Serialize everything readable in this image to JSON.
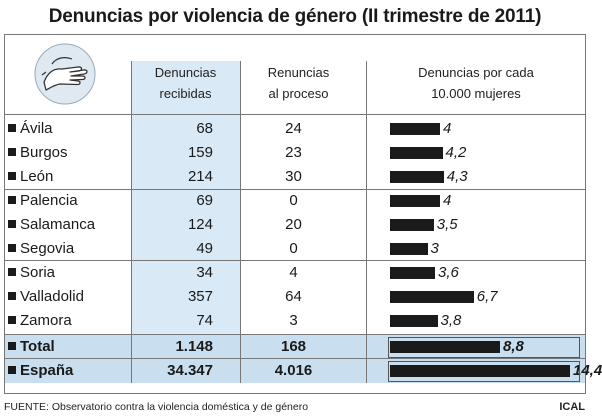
{
  "title": "Denuncias por violencia de género (II trimestre de 2011)",
  "headers": {
    "recibidas": [
      "Denuncias",
      "recibidas"
    ],
    "renuncias": [
      "Renuncias",
      "al proceso"
    ],
    "ratio": [
      "Denuncias por cada",
      "10.000 mujeres"
    ]
  },
  "rows": [
    {
      "name": "Ávila",
      "recibidas": "68",
      "renuncias": "24",
      "ratio": "4"
    },
    {
      "name": "Burgos",
      "recibidas": "159",
      "renuncias": "23",
      "ratio": "4,2"
    },
    {
      "name": "León",
      "recibidas": "214",
      "renuncias": "30",
      "ratio": "4,3"
    },
    {
      "name": "Palencia",
      "recibidas": "69",
      "renuncias": "0",
      "ratio": "4"
    },
    {
      "name": "Salamanca",
      "recibidas": "124",
      "renuncias": "20",
      "ratio": "3,5"
    },
    {
      "name": "Segovia",
      "recibidas": "49",
      "renuncias": "0",
      "ratio": "3"
    },
    {
      "name": "Soria",
      "recibidas": "34",
      "renuncias": "4",
      "ratio": "3,6"
    },
    {
      "name": "Valladolid",
      "recibidas": "357",
      "renuncias": "64",
      "ratio": "6,7"
    },
    {
      "name": "Zamora",
      "recibidas": "74",
      "renuncias": "3",
      "ratio": "3,8"
    }
  ],
  "totals": [
    {
      "name": "Total",
      "recibidas": "1.148",
      "renuncias": "168",
      "ratio": "8,8"
    },
    {
      "name": "España",
      "recibidas": "34.347",
      "renuncias": "4.016",
      "ratio": "14,4"
    }
  ],
  "chart_data": {
    "type": "bar",
    "categories": [
      "Ávila",
      "Burgos",
      "León",
      "Palencia",
      "Salamanca",
      "Segovia",
      "Soria",
      "Valladolid",
      "Zamora",
      "Total",
      "España"
    ],
    "values": [
      4,
      4.2,
      4.3,
      4,
      3.5,
      3,
      3.6,
      6.7,
      3.8,
      8.8,
      14.4
    ],
    "xlim": [
      0,
      14.4
    ]
  },
  "footer": "FUENTE: Observatorio contra la violencia doméstica y de género",
  "credit": "ICAL",
  "colors": {
    "highlight": "#d9e9f5",
    "total_band": "#c9dff0",
    "bar": "#1a1a1a"
  }
}
